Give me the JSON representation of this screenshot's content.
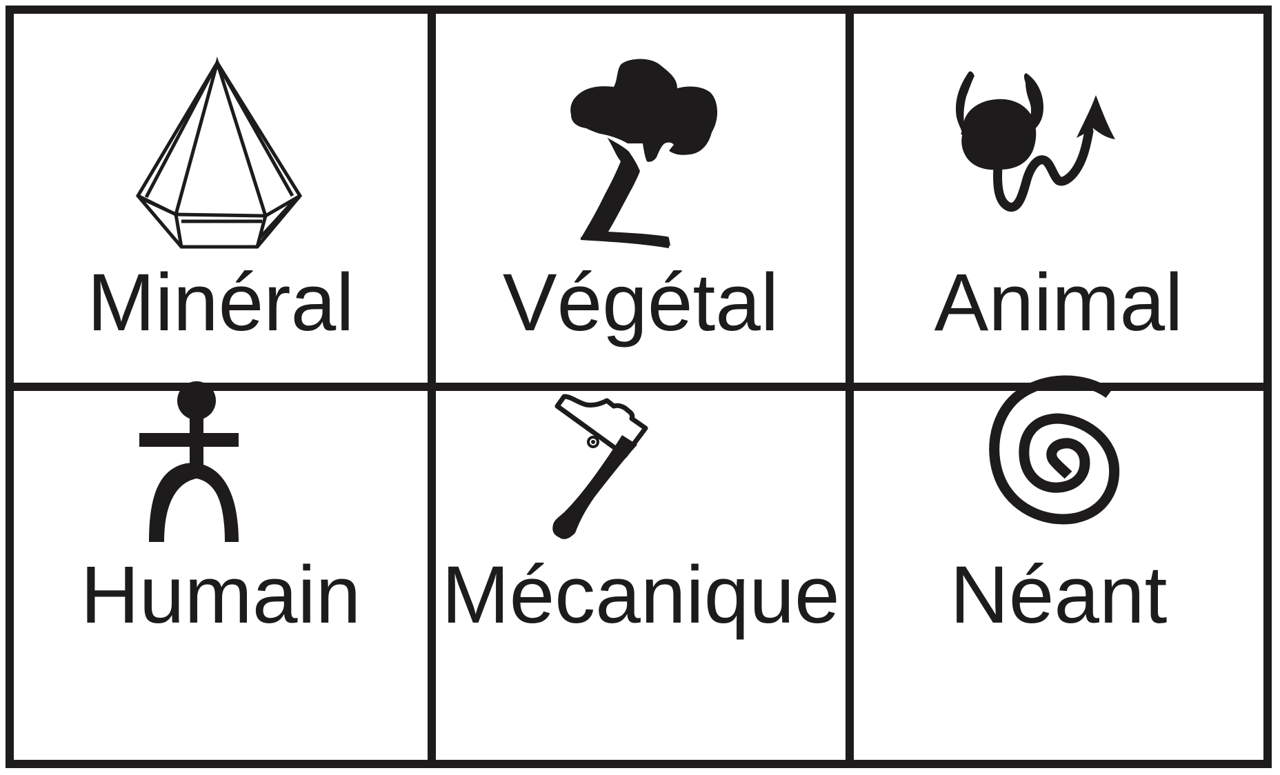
{
  "ink_color": "#1d1b1c",
  "background_color": "#ffffff",
  "cells": [
    {
      "label": "Minéral",
      "icon": "crystal-icon"
    },
    {
      "label": "Végétal",
      "icon": "tree-icon"
    },
    {
      "label": "Animal",
      "icon": "devil-icon"
    },
    {
      "label": "Humain",
      "icon": "human-figure-icon"
    },
    {
      "label": "Mécanique",
      "icon": "hammer-icon"
    },
    {
      "label": "Néant",
      "icon": "spiral-icon"
    }
  ]
}
